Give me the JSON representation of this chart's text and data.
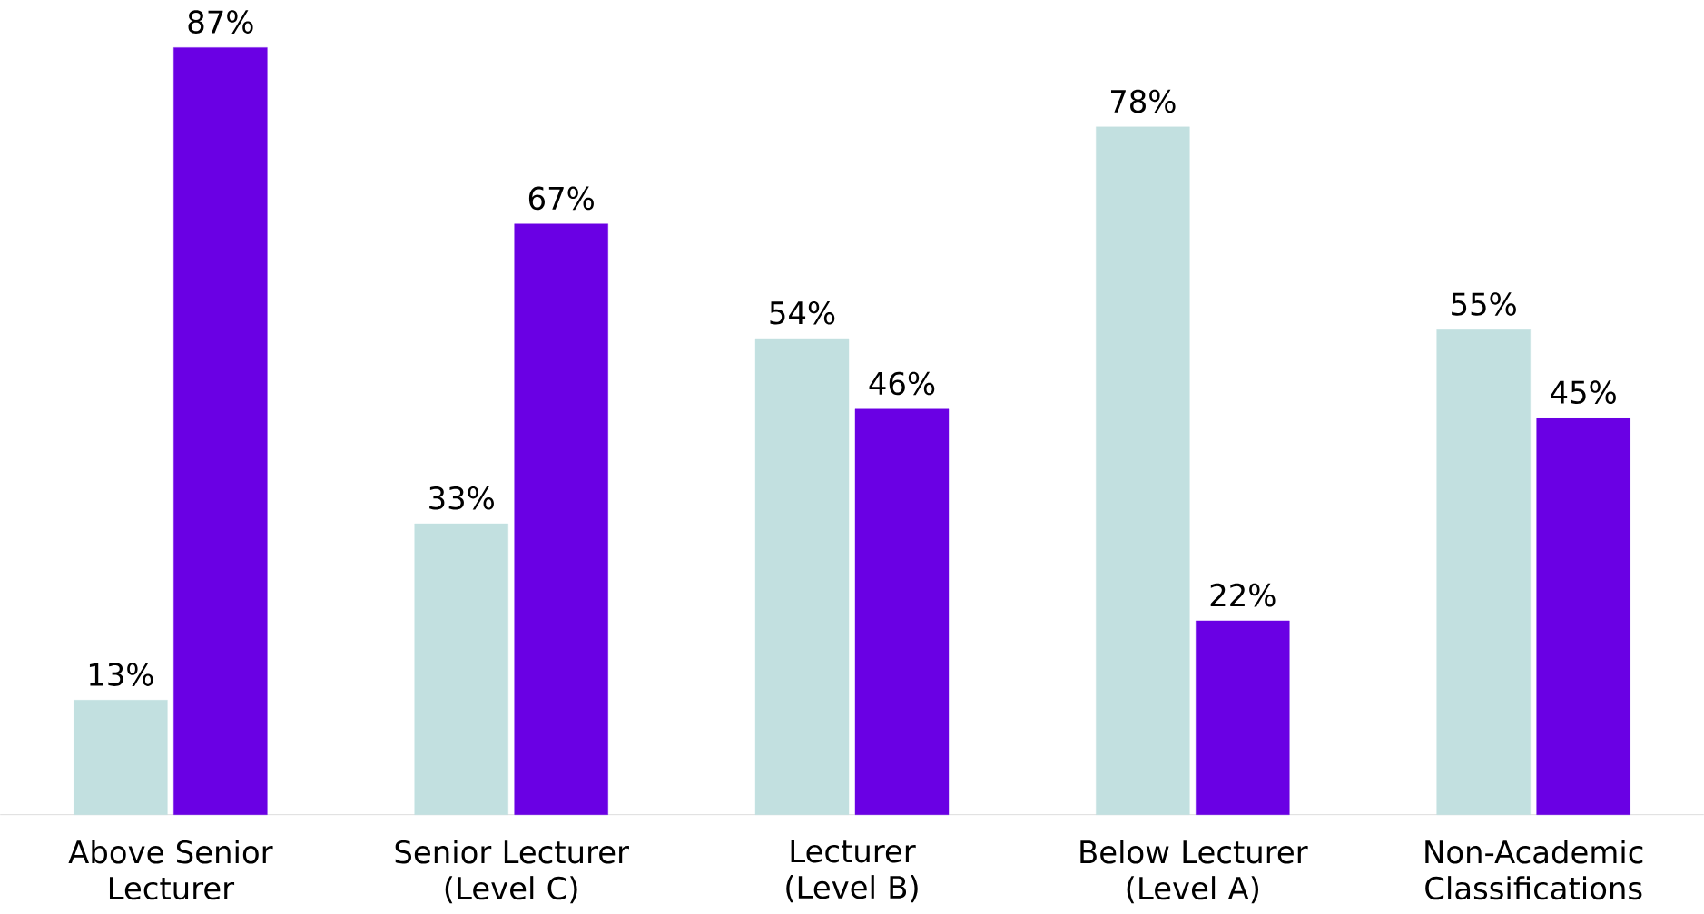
{
  "chart_data": {
    "type": "bar",
    "categories": [
      "Above Senior Lecturer",
      "Senior Lecturer (Level C)",
      "Lecturer (Level B)",
      "Below Lecturer (Level A)",
      "Non-Academic Classifications"
    ],
    "series": [
      {
        "color": "#c2e0e0",
        "values": [
          13,
          33,
          54,
          78,
          55
        ],
        "value_labels": [
          "13%",
          "33%",
          "54%",
          "78%",
          "55%"
        ]
      },
      {
        "color": "#6a00e4",
        "values": [
          87,
          67,
          46,
          22,
          45
        ],
        "value_labels": [
          "87%",
          "67%",
          "46%",
          "22%",
          "45%"
        ]
      }
    ],
    "legend": false
  }
}
